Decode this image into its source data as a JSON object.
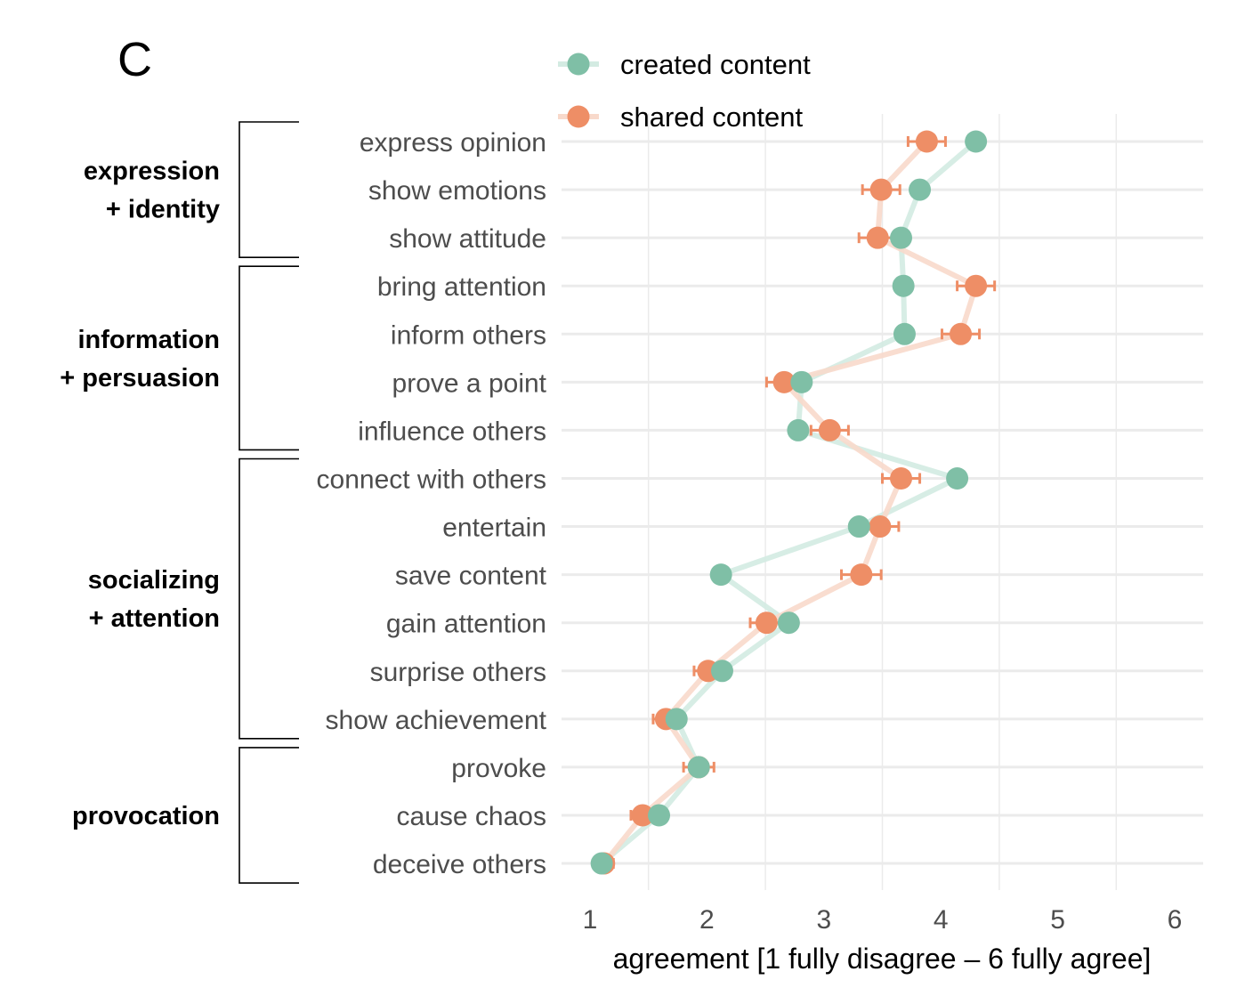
{
  "panel_label": "C",
  "chart_data": {
    "type": "scatter",
    "orientation": "horizontal dot plot with connecting lines",
    "title": "",
    "xlabel": "agreement [1 fully disagree – 6 fully agree]",
    "ylabel": "",
    "xlim": [
      0.75,
      6.25
    ],
    "xticks": [
      1,
      2,
      3,
      4,
      5,
      6
    ],
    "xtick_labels": [
      "1",
      "2",
      "3",
      "4",
      "5",
      "6"
    ],
    "grid": true,
    "legend": {
      "placement": "top",
      "entries": [
        "created content",
        "shared content"
      ]
    },
    "categories": [
      "express opinion",
      "show emotions",
      "show attitude",
      "bring attention",
      "inform others",
      "prove a point",
      "influence others",
      "connect with others",
      "entertain",
      "save content",
      "gain attention",
      "surprise others",
      "show achievement",
      "provoke",
      "cause chaos",
      "deceive others"
    ],
    "groups": [
      {
        "lines": [
          "expression",
          "+ identity"
        ],
        "first": 0,
        "last": 2
      },
      {
        "lines": [
          "information",
          "+ persuasion"
        ],
        "first": 3,
        "last": 6
      },
      {
        "lines": [
          "socializing",
          "+ attention"
        ],
        "first": 7,
        "last": 12
      },
      {
        "lines": [
          "provocation"
        ],
        "first": 13,
        "last": 15
      }
    ],
    "series": [
      {
        "name": "created content",
        "color": "#7fbfa6",
        "line_color": "#d3ebe2",
        "values": [
          4.3,
          3.82,
          3.66,
          3.68,
          3.69,
          2.81,
          2.78,
          4.14,
          3.3,
          2.12,
          2.7,
          2.13,
          1.74,
          1.93,
          1.59,
          1.1
        ]
      },
      {
        "name": "shared content",
        "color": "#ee8e66",
        "line_color": "#f8d9cb",
        "values": [
          3.88,
          3.49,
          3.46,
          4.3,
          4.17,
          2.66,
          3.05,
          3.66,
          3.48,
          3.32,
          2.51,
          2.01,
          1.65,
          1.93,
          1.45,
          1.12
        ],
        "error": [
          0.16,
          0.16,
          0.16,
          0.16,
          0.16,
          0.15,
          0.16,
          0.16,
          0.16,
          0.17,
          0.14,
          0.12,
          0.11,
          0.13,
          0.1,
          0.08
        ]
      }
    ]
  }
}
